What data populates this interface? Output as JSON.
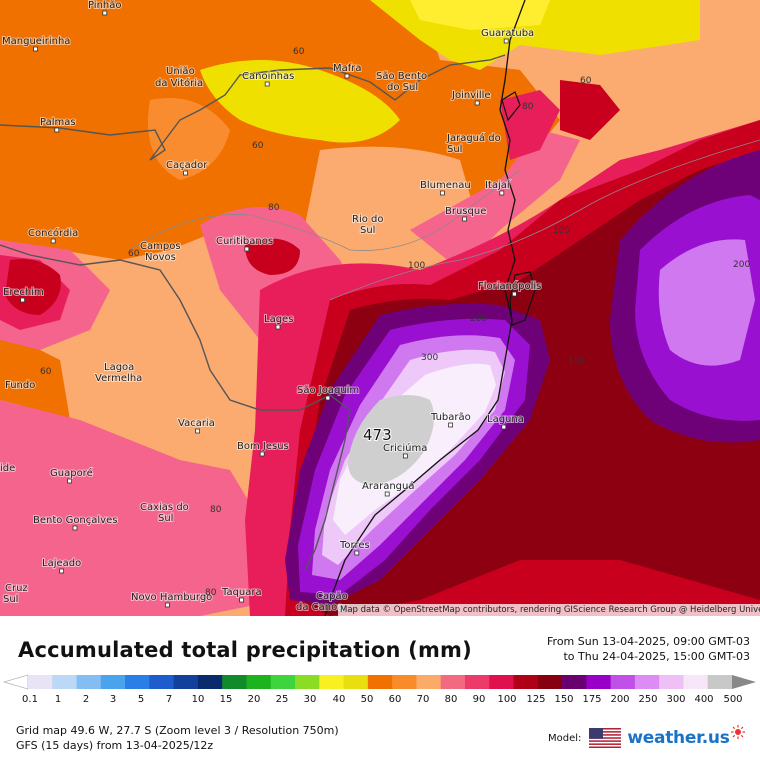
{
  "map": {
    "cities": [
      {
        "name": "Pinhão"
      },
      {
        "name": "Mangueirinha"
      },
      {
        "name": "União"
      },
      {
        "name": "da Vitória"
      },
      {
        "name": "Canoinhas"
      },
      {
        "name": "Mafra"
      },
      {
        "name": "São Bento"
      },
      {
        "name": "do Sul"
      },
      {
        "name": "Guaratuba"
      },
      {
        "name": "Joinville"
      },
      {
        "name": "Palmas"
      },
      {
        "name": "Jaraguá do"
      },
      {
        "name": "Sul"
      },
      {
        "name": "Caçador"
      },
      {
        "name": "Blumenau"
      },
      {
        "name": "Itajaí"
      },
      {
        "name": "Brusque"
      },
      {
        "name": "Rio do"
      },
      {
        "name": "Sul"
      },
      {
        "name": "Concórdia"
      },
      {
        "name": "Curitibanos"
      },
      {
        "name": "Campos"
      },
      {
        "name": "Novos"
      },
      {
        "name": "Erechim"
      },
      {
        "name": "Florianópolis"
      },
      {
        "name": "Lages"
      },
      {
        "name": "Lagoa"
      },
      {
        "name": "Vermelha"
      },
      {
        "name": "Fundo"
      },
      {
        "name": "São Joaquim"
      },
      {
        "name": "Vacaria"
      },
      {
        "name": "Tubarão"
      },
      {
        "name": "Laguna"
      },
      {
        "name": "Bom Jesus"
      },
      {
        "name": "Criciúma"
      },
      {
        "name": "Guaporé"
      },
      {
        "name": "Araranguá"
      },
      {
        "name": "Caxias do"
      },
      {
        "name": "Sul"
      },
      {
        "name": "Bento Gonçalves"
      },
      {
        "name": "Torres"
      },
      {
        "name": "Lajeado"
      },
      {
        "name": "Cruz"
      },
      {
        "name": "Sul"
      },
      {
        "name": "Novo Hamburgo"
      },
      {
        "name": "Taquara"
      },
      {
        "name": "Capão"
      },
      {
        "name": "da Canoa"
      },
      {
        "name": "ide"
      }
    ],
    "contour_labels": [
      "60",
      "60",
      "60",
      "60",
      "80",
      "80",
      "60",
      "100",
      "100",
      "200",
      "200",
      "300",
      "150",
      "80",
      "80",
      "60"
    ],
    "max_value_label": "473",
    "attribution": "Map data © OpenStreetMap contributors, rendering GIScience Research Group @ Heidelberg University"
  },
  "legend": {
    "title": "Accumulated total precipitation (mm)",
    "date_from": "From Sun 13-04-2025, 09:00 GMT-03",
    "date_to": "to Thu 24-04-2025, 15:00 GMT-03",
    "colors": [
      "#e8e3f5",
      "#bcd8f7",
      "#84bdf2",
      "#4ba3ee",
      "#2b7de8",
      "#1c5ccc",
      "#13409a",
      "#0a2a6e",
      "#108a2a",
      "#1fb21f",
      "#3ed43e",
      "#8cdc24",
      "#f8f020",
      "#e8de10",
      "#f07000",
      "#f88c28",
      "#fbaa68",
      "#f26a80",
      "#ec3b6a",
      "#e0104e",
      "#b00018",
      "#880010",
      "#6a0070",
      "#9800c8",
      "#c050e8",
      "#dc8cf2",
      "#eec0f6",
      "#f7e6f8",
      "#c8c8c8"
    ],
    "ticks": [
      "0.1",
      "1",
      "2",
      "3",
      "5",
      "7",
      "10",
      "15",
      "20",
      "25",
      "30",
      "40",
      "50",
      "60",
      "70",
      "80",
      "90",
      "100",
      "125",
      "150",
      "175",
      "200",
      "250",
      "300",
      "400",
      "500"
    ]
  },
  "footer": {
    "grid_info": "Grid map 49.6 W, 27.7 S (Zoom level 3 / Resolution 750m)",
    "model_run": "GFS (15 days) from 13-04-2025/12z",
    "model_label": "Model:",
    "brand_name": "weather.us"
  },
  "colors": {
    "c40": "#f0e000",
    "c50": "#ffee30",
    "c60": "#f07000",
    "c70": "#fa8c30",
    "c80": "#fbaa70",
    "c90": "#f4648c",
    "c100": "#e81e5a",
    "c125": "#c8001e",
    "c150": "#8c0012",
    "c175": "#6e0078",
    "c200": "#9a10d0",
    "c250": "#d078f0",
    "c300": "#eec8f8",
    "c400": "#f8eefc",
    "c500": "#cfcfcf"
  }
}
